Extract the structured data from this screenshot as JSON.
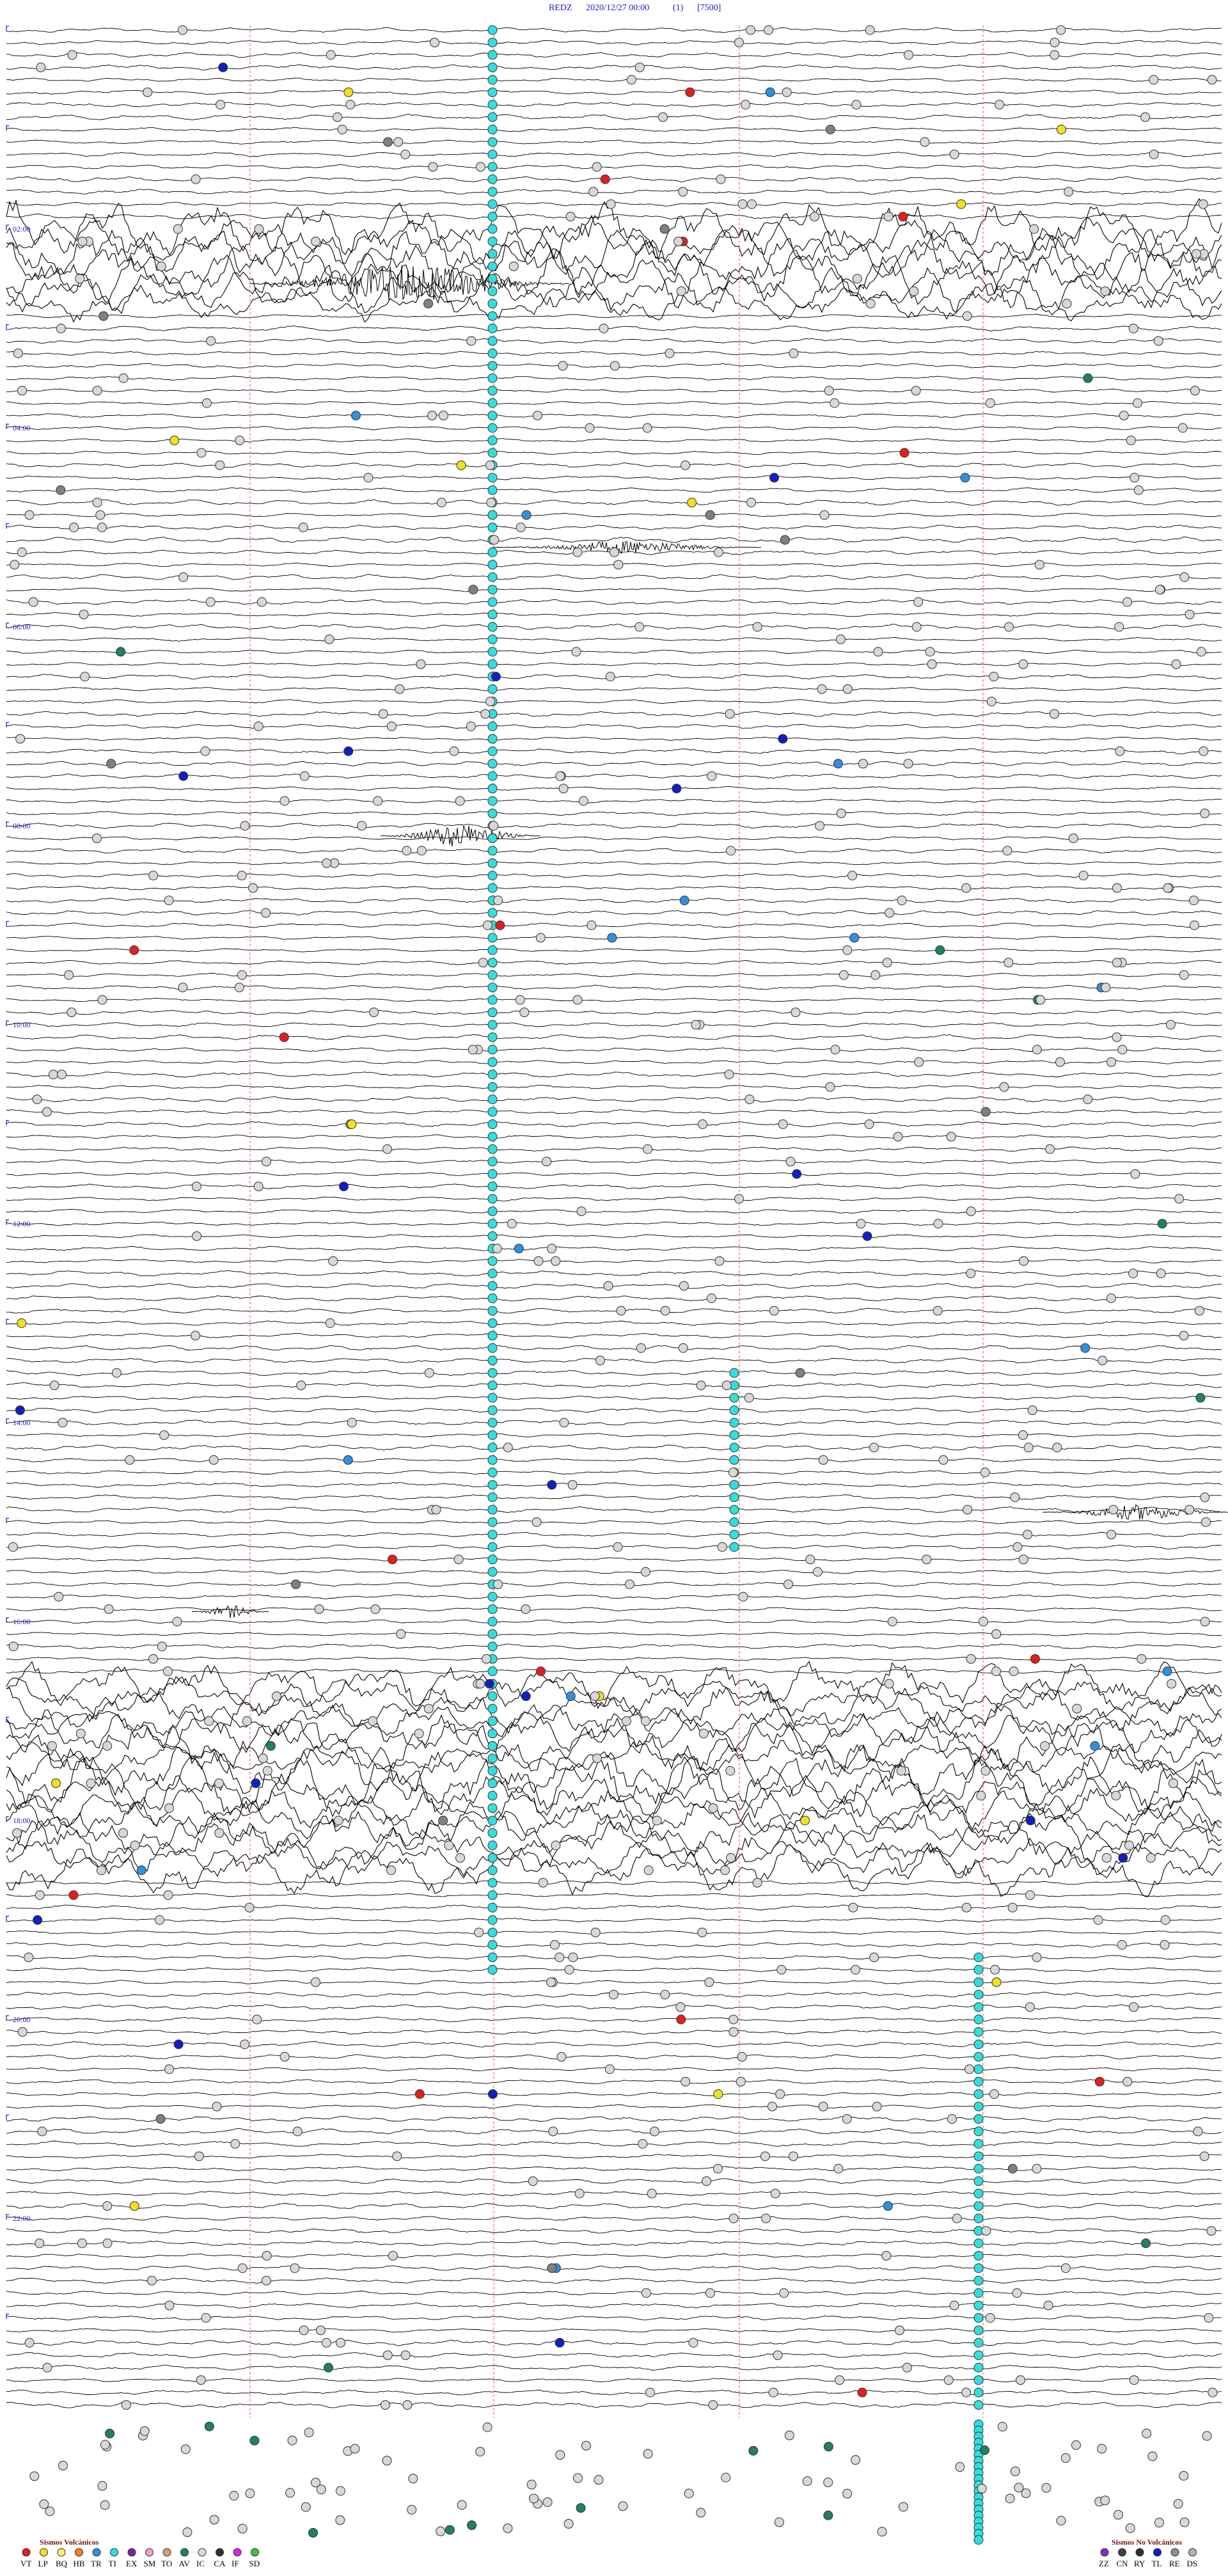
{
  "header": {
    "station": "REDZ",
    "datetime": "2020/12/27 00:00",
    "channel": "(1)",
    "scale": "[7500]"
  },
  "time_labels": [
    "02:00",
    "04:00",
    "06:00",
    "08:00",
    "10:00",
    "12:00",
    "14:00",
    "16:00",
    "18:00",
    "20:00",
    "22:00"
  ],
  "legend": {
    "volcanic": {
      "title": "Sismos Volcánicos",
      "codes": [
        {
          "code": "VT",
          "color": "#e02020"
        },
        {
          "code": "LP",
          "color": "#f0e020"
        },
        {
          "code": "BQ",
          "color": "#f4f070"
        },
        {
          "code": "HB",
          "color": "#f08020"
        },
        {
          "code": "TR",
          "color": "#3090e0"
        },
        {
          "code": "TI",
          "color": "#30e0e0"
        },
        {
          "code": "EX",
          "color": "#8020a0"
        },
        {
          "code": "SM",
          "color": "#f0a0d0"
        },
        {
          "code": "TO",
          "color": "#d0a070"
        },
        {
          "code": "AV",
          "color": "#208060"
        },
        {
          "code": "IC",
          "color": "#d8d8d8"
        },
        {
          "code": "CA",
          "color": "#303040"
        },
        {
          "code": "IF",
          "color": "#e020e0"
        },
        {
          "code": "SD",
          "color": "#40c040"
        }
      ]
    },
    "non_volcanic": {
      "title": "Sismos No Volcánicos",
      "codes": [
        {
          "code": "ZZ",
          "color": "#8030c0"
        },
        {
          "code": "CN",
          "color": "#404040"
        },
        {
          "code": "RY",
          "color": "#303030"
        },
        {
          "code": "TL",
          "color": "#1020c0"
        },
        {
          "code": "RE",
          "color": "#909090"
        },
        {
          "code": "DS",
          "color": "#b0b0b0"
        }
      ]
    }
  }
}
